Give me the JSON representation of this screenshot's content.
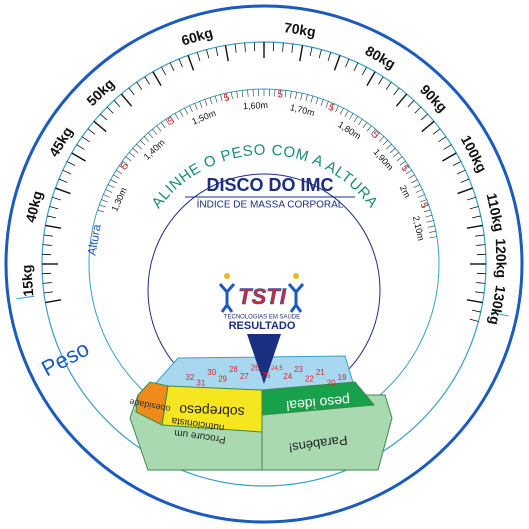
{
  "weights": [
    "15kg",
    "40kg",
    "45kg",
    "50kg",
    "60kg",
    "70kg",
    "80kg",
    "90kg",
    "100kg",
    "110kg",
    "120kg",
    "130kg"
  ],
  "weight_label": "Peso",
  "height_label": "Altura",
  "heights": [
    "1,30m",
    "1,40m",
    "1,50m",
    "1,60m",
    "1,70m",
    "1,80m",
    "1,90m",
    "2m",
    "2,10m"
  ],
  "half_marks": [
    "5",
    "5",
    "5",
    "5",
    "5",
    "5",
    "5",
    "5"
  ],
  "instruction": "ALINHE O PESO COM A ALTURA",
  "title": "DISCO DO IMC",
  "subtitle": "ÍNDICE DE MASSA CORPORAL",
  "logo": {
    "name": "TSTI",
    "tagline": "TECNOLOGIAS EM SAÚDE"
  },
  "result_label": "RESULTADO",
  "bmi_scale": [
    "32",
    "31",
    "30",
    "29",
    "28",
    "27",
    "26",
    "25",
    "24,5",
    "24",
    "23",
    "22",
    "21",
    "20",
    "19"
  ],
  "bands": {
    "obese": "obesidade",
    "overweight": "sobrepeso",
    "ideal": "peso ideal",
    "advice": [
      "Procure um",
      "nutricionista"
    ],
    "congrats": "Parabéns!"
  }
}
